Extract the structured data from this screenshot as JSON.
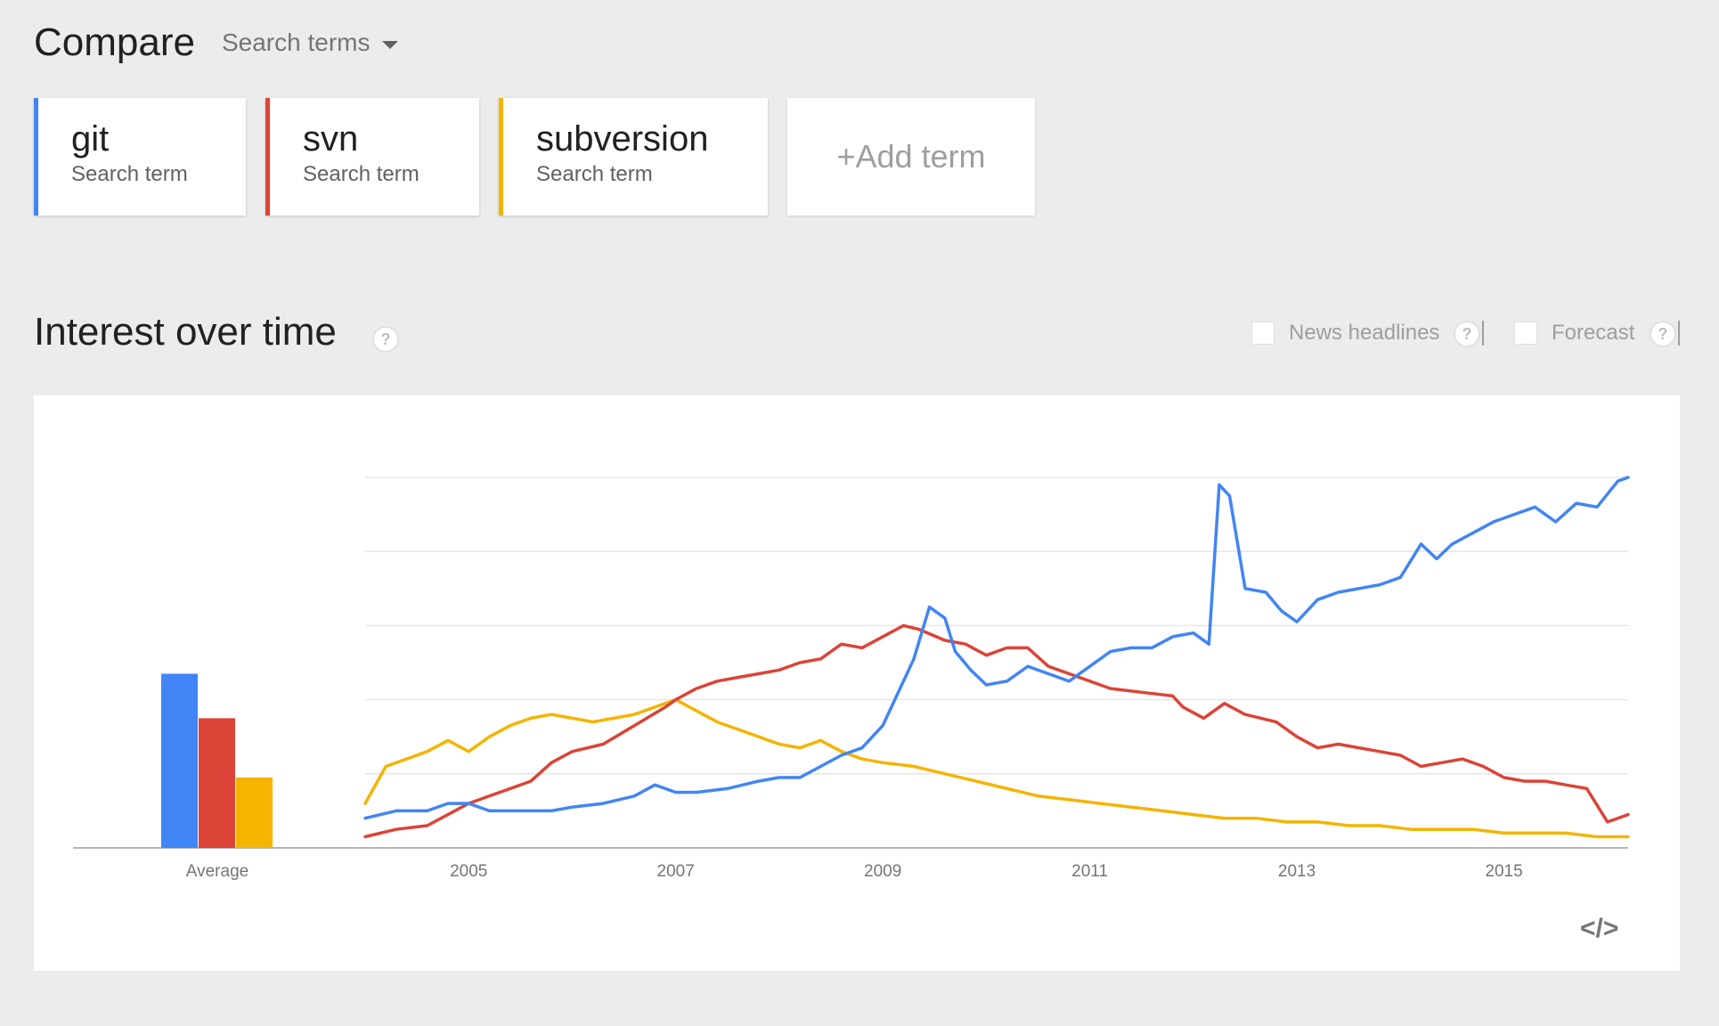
{
  "header": {
    "title": "Compare",
    "search_terms_label": "Search terms"
  },
  "terms": [
    {
      "name": "git",
      "subtitle": "Search term",
      "color": "#4285f4"
    },
    {
      "name": "svn",
      "subtitle": "Search term",
      "color": "#db4437"
    },
    {
      "name": "subversion",
      "subtitle": "Search term",
      "color": "#f4b400"
    }
  ],
  "add_term": "+Add term",
  "interest": {
    "title": "Interest over time",
    "news_headlines": "News headlines",
    "forecast": "Forecast"
  },
  "chart_data": {
    "type": "line",
    "x_range": [
      2004.0,
      2016.2
    ],
    "y_range": [
      0,
      100
    ],
    "x_ticks": [
      "2005",
      "2007",
      "2009",
      "2011",
      "2013",
      "2015"
    ],
    "average_label": "Average",
    "averages": [
      47,
      35,
      19
    ],
    "grid": true,
    "series": [
      {
        "name": "git",
        "color": "#4285f4",
        "points": [
          [
            2004.0,
            8
          ],
          [
            2004.3,
            10
          ],
          [
            2004.6,
            10
          ],
          [
            2004.8,
            12
          ],
          [
            2005.0,
            12
          ],
          [
            2005.2,
            10
          ],
          [
            2005.5,
            10
          ],
          [
            2005.8,
            10
          ],
          [
            2006.0,
            11
          ],
          [
            2006.3,
            12
          ],
          [
            2006.6,
            14
          ],
          [
            2006.8,
            17
          ],
          [
            2007.0,
            15
          ],
          [
            2007.2,
            15
          ],
          [
            2007.5,
            16
          ],
          [
            2007.8,
            18
          ],
          [
            2008.0,
            19
          ],
          [
            2008.2,
            19
          ],
          [
            2008.4,
            22
          ],
          [
            2008.6,
            25
          ],
          [
            2008.8,
            27
          ],
          [
            2009.0,
            33
          ],
          [
            2009.2,
            45
          ],
          [
            2009.3,
            51
          ],
          [
            2009.45,
            65
          ],
          [
            2009.6,
            62
          ],
          [
            2009.7,
            53
          ],
          [
            2009.85,
            48
          ],
          [
            2010.0,
            44
          ],
          [
            2010.2,
            45
          ],
          [
            2010.4,
            49
          ],
          [
            2010.6,
            47
          ],
          [
            2010.8,
            45
          ],
          [
            2011.0,
            49
          ],
          [
            2011.2,
            53
          ],
          [
            2011.4,
            54
          ],
          [
            2011.6,
            54
          ],
          [
            2011.8,
            57
          ],
          [
            2012.0,
            58
          ],
          [
            2012.15,
            55
          ],
          [
            2012.25,
            98
          ],
          [
            2012.35,
            95
          ],
          [
            2012.5,
            70
          ],
          [
            2012.7,
            69
          ],
          [
            2012.85,
            64
          ],
          [
            2013.0,
            61
          ],
          [
            2013.2,
            67
          ],
          [
            2013.4,
            69
          ],
          [
            2013.6,
            70
          ],
          [
            2013.8,
            71
          ],
          [
            2014.0,
            73
          ],
          [
            2014.2,
            82
          ],
          [
            2014.35,
            78
          ],
          [
            2014.5,
            82
          ],
          [
            2014.7,
            85
          ],
          [
            2014.9,
            88
          ],
          [
            2015.1,
            90
          ],
          [
            2015.3,
            92
          ],
          [
            2015.5,
            88
          ],
          [
            2015.7,
            93
          ],
          [
            2015.9,
            92
          ],
          [
            2016.1,
            99
          ],
          [
            2016.2,
            100
          ]
        ]
      },
      {
        "name": "svn",
        "color": "#db4437",
        "points": [
          [
            2004.0,
            3
          ],
          [
            2004.3,
            5
          ],
          [
            2004.6,
            6
          ],
          [
            2004.8,
            9
          ],
          [
            2005.0,
            12
          ],
          [
            2005.3,
            15
          ],
          [
            2005.6,
            18
          ],
          [
            2005.8,
            23
          ],
          [
            2006.0,
            26
          ],
          [
            2006.3,
            28
          ],
          [
            2006.6,
            33
          ],
          [
            2006.9,
            38
          ],
          [
            2007.0,
            40
          ],
          [
            2007.2,
            43
          ],
          [
            2007.4,
            45
          ],
          [
            2007.6,
            46
          ],
          [
            2007.8,
            47
          ],
          [
            2008.0,
            48
          ],
          [
            2008.2,
            50
          ],
          [
            2008.4,
            51
          ],
          [
            2008.6,
            55
          ],
          [
            2008.8,
            54
          ],
          [
            2009.0,
            57
          ],
          [
            2009.2,
            60
          ],
          [
            2009.35,
            59
          ],
          [
            2009.6,
            56
          ],
          [
            2009.8,
            55
          ],
          [
            2010.0,
            52
          ],
          [
            2010.2,
            54
          ],
          [
            2010.4,
            54
          ],
          [
            2010.6,
            49
          ],
          [
            2010.8,
            47
          ],
          [
            2011.0,
            45
          ],
          [
            2011.2,
            43
          ],
          [
            2011.5,
            42
          ],
          [
            2011.8,
            41
          ],
          [
            2011.9,
            38
          ],
          [
            2012.1,
            35
          ],
          [
            2012.3,
            39
          ],
          [
            2012.5,
            36
          ],
          [
            2012.8,
            34
          ],
          [
            2013.0,
            30
          ],
          [
            2013.2,
            27
          ],
          [
            2013.4,
            28
          ],
          [
            2013.6,
            27
          ],
          [
            2013.8,
            26
          ],
          [
            2014.0,
            25
          ],
          [
            2014.2,
            22
          ],
          [
            2014.4,
            23
          ],
          [
            2014.6,
            24
          ],
          [
            2014.8,
            22
          ],
          [
            2015.0,
            19
          ],
          [
            2015.2,
            18
          ],
          [
            2015.4,
            18
          ],
          [
            2015.6,
            17
          ],
          [
            2015.8,
            16
          ],
          [
            2016.0,
            7
          ],
          [
            2016.2,
            9
          ]
        ]
      },
      {
        "name": "subversion",
        "color": "#f4b400",
        "points": [
          [
            2004.0,
            12
          ],
          [
            2004.2,
            22
          ],
          [
            2004.4,
            24
          ],
          [
            2004.6,
            26
          ],
          [
            2004.8,
            29
          ],
          [
            2005.0,
            26
          ],
          [
            2005.2,
            30
          ],
          [
            2005.4,
            33
          ],
          [
            2005.6,
            35
          ],
          [
            2005.8,
            36
          ],
          [
            2006.0,
            35
          ],
          [
            2006.2,
            34
          ],
          [
            2006.4,
            35
          ],
          [
            2006.6,
            36
          ],
          [
            2006.8,
            38
          ],
          [
            2007.0,
            40
          ],
          [
            2007.2,
            37
          ],
          [
            2007.4,
            34
          ],
          [
            2007.6,
            32
          ],
          [
            2007.8,
            30
          ],
          [
            2008.0,
            28
          ],
          [
            2008.2,
            27
          ],
          [
            2008.4,
            29
          ],
          [
            2008.6,
            26
          ],
          [
            2008.8,
            24
          ],
          [
            2009.0,
            23
          ],
          [
            2009.3,
            22
          ],
          [
            2009.6,
            20
          ],
          [
            2009.9,
            18
          ],
          [
            2010.2,
            16
          ],
          [
            2010.5,
            14
          ],
          [
            2010.8,
            13
          ],
          [
            2011.1,
            12
          ],
          [
            2011.4,
            11
          ],
          [
            2011.7,
            10
          ],
          [
            2012.0,
            9
          ],
          [
            2012.3,
            8
          ],
          [
            2012.6,
            8
          ],
          [
            2012.9,
            7
          ],
          [
            2013.2,
            7
          ],
          [
            2013.5,
            6
          ],
          [
            2013.8,
            6
          ],
          [
            2014.1,
            5
          ],
          [
            2014.4,
            5
          ],
          [
            2014.7,
            5
          ],
          [
            2015.0,
            4
          ],
          [
            2015.3,
            4
          ],
          [
            2015.6,
            4
          ],
          [
            2015.9,
            3
          ],
          [
            2016.2,
            3
          ]
        ]
      }
    ]
  }
}
